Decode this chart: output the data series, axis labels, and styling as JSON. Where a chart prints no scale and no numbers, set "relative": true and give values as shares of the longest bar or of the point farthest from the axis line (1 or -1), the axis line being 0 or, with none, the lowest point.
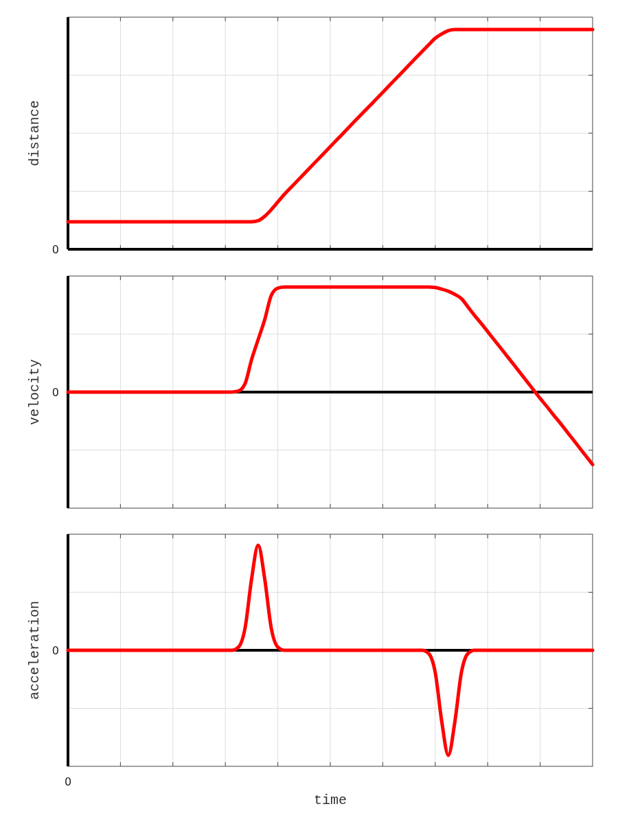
{
  "chart_data": [
    {
      "type": "line",
      "relative": true,
      "ylabel": "distance",
      "grid": true,
      "categories": [
        null,
        null,
        null,
        null,
        null,
        null,
        null,
        null,
        null,
        null,
        null,
        null,
        null,
        null,
        null,
        null,
        null,
        null,
        null,
        null,
        null,
        null,
        null,
        null,
        null,
        null,
        null,
        null,
        null,
        null,
        null,
        null,
        null,
        null,
        null,
        null,
        null,
        null,
        null,
        null,
        null,
        null,
        null,
        null,
        null,
        null,
        null,
        null,
        null,
        null,
        null,
        null,
        null,
        null,
        null,
        null,
        null,
        null,
        null,
        null,
        null,
        null,
        null,
        null,
        null,
        null,
        null,
        null,
        null,
        null,
        null,
        null,
        null,
        null,
        null,
        null,
        null,
        null,
        null,
        null,
        null
      ],
      "ref_lines": [
        {
          "axis": "y",
          "value": 0,
          "label": "0",
          "color": "#000000"
        }
      ],
      "series": [
        {
          "color": "#ff0000",
          "values": [
            0.125,
            0.125,
            0.125,
            0.125,
            0.125,
            0.125,
            0.125,
            0.125,
            0.125,
            0.125,
            0.125,
            0.125,
            0.125,
            0.125,
            0.125,
            0.125,
            0.125,
            0.125,
            0.125,
            0.125,
            0.125,
            0.125,
            0.125,
            0.125,
            0.125,
            0.125,
            0.125,
            0.125,
            0.125,
            0.13,
            0.15,
            0.18,
            0.215,
            0.25,
            0.281,
            0.312,
            0.343,
            0.374,
            0.405,
            0.436,
            0.467,
            0.498,
            0.529,
            0.56,
            0.591,
            0.622,
            0.652,
            0.683,
            0.714,
            0.745,
            0.776,
            0.807,
            0.838,
            0.869,
            0.9,
            0.93,
            0.96,
            0.98,
            0.995,
            1,
            1,
            1,
            1,
            1,
            1,
            1,
            1,
            1,
            1,
            1,
            1,
            1,
            1,
            1,
            1,
            1,
            1,
            1,
            1,
            1,
            1
          ]
        }
      ]
    },
    {
      "type": "line",
      "relative": true,
      "ylabel": "velocity",
      "grid": true,
      "categories": [
        null,
        null,
        null,
        null,
        null,
        null,
        null,
        null,
        null,
        null,
        null,
        null,
        null,
        null,
        null,
        null,
        null,
        null,
        null,
        null,
        null,
        null,
        null,
        null,
        null,
        null,
        null,
        null,
        null,
        null,
        null,
        null,
        null,
        null,
        null,
        null,
        null,
        null,
        null,
        null,
        null,
        null,
        null,
        null,
        null,
        null,
        null,
        null,
        null,
        null,
        null,
        null,
        null,
        null,
        null,
        null,
        null,
        null,
        null,
        null,
        null,
        null,
        null,
        null,
        null,
        null,
        null,
        null,
        null,
        null,
        null,
        null,
        null,
        null,
        null,
        null,
        null,
        null,
        null,
        null,
        null
      ],
      "ref_lines": [
        {
          "axis": "y",
          "value": 0,
          "label": "0",
          "color": "#000000"
        }
      ],
      "series": [
        {
          "color": "#ff0000",
          "values": [
            0,
            0,
            0,
            0,
            0,
            0,
            0,
            0,
            0,
            0,
            0,
            0,
            0,
            0,
            0,
            0,
            0,
            0,
            0,
            0,
            0,
            0,
            0,
            0,
            0,
            0,
            0.01,
            0.08,
            0.31,
            0.5,
            0.69,
            0.92,
            0.99,
            1,
            1,
            1,
            1,
            1,
            1,
            1,
            1,
            1,
            1,
            1,
            1,
            1,
            1,
            1,
            1,
            1,
            1,
            1,
            1,
            1,
            1,
            1,
            0.995,
            0.98,
            0.96,
            0.93,
            0.89,
            0.81,
            0.73,
            0.655,
            0.576,
            0.497,
            0.418,
            0.339,
            0.26,
            0.18,
            0.1,
            0.02,
            -0.06,
            -0.136,
            -0.215,
            -0.29,
            -0.37,
            -0.45,
            -0.53,
            -0.61,
            -0.69
          ]
        }
      ]
    },
    {
      "type": "line",
      "relative": true,
      "ylabel": "acceleration",
      "xlabel": "time",
      "grid": true,
      "annotations": [
        "0"
      ],
      "categories": [
        null,
        null,
        null,
        null,
        null,
        null,
        null,
        null,
        null,
        null,
        null,
        null,
        null,
        null,
        null,
        null,
        null,
        null,
        null,
        null,
        null,
        null,
        null,
        null,
        null,
        null,
        null,
        null,
        null,
        null,
        null,
        null,
        null,
        null,
        null,
        null,
        null,
        null,
        null,
        null,
        null,
        null,
        null,
        null,
        null,
        null,
        null,
        null,
        null,
        null,
        null,
        null,
        null,
        null,
        null,
        null,
        null,
        null,
        null,
        null,
        null,
        null,
        null,
        null,
        null,
        null,
        null,
        null,
        null,
        null,
        null,
        null,
        null,
        null,
        null,
        null,
        null,
        null,
        null,
        null,
        null
      ],
      "ref_lines": [
        {
          "axis": "y",
          "value": 0,
          "label": "0",
          "color": "#000000"
        }
      ],
      "series": [
        {
          "color": "#ff0000",
          "values": [
            0,
            0,
            0,
            0,
            0,
            0,
            0,
            0,
            0,
            0,
            0,
            0,
            0,
            0,
            0,
            0,
            0,
            0,
            0,
            0,
            0,
            0,
            0,
            0,
            0,
            0,
            0.03,
            0.21,
            0.68,
            1,
            0.68,
            0.21,
            0.03,
            0,
            0,
            0,
            0,
            0,
            0,
            0,
            0,
            0,
            0,
            0,
            0,
            0,
            0,
            0,
            0,
            0,
            0,
            0,
            0,
            0,
            0,
            -0.03,
            -0.21,
            -0.68,
            -1,
            -0.68,
            -0.21,
            -0.03,
            0,
            0,
            0,
            0,
            0,
            0,
            0,
            0,
            0,
            0,
            0,
            0,
            0,
            0,
            0,
            0,
            0,
            0,
            0
          ]
        }
      ]
    }
  ]
}
